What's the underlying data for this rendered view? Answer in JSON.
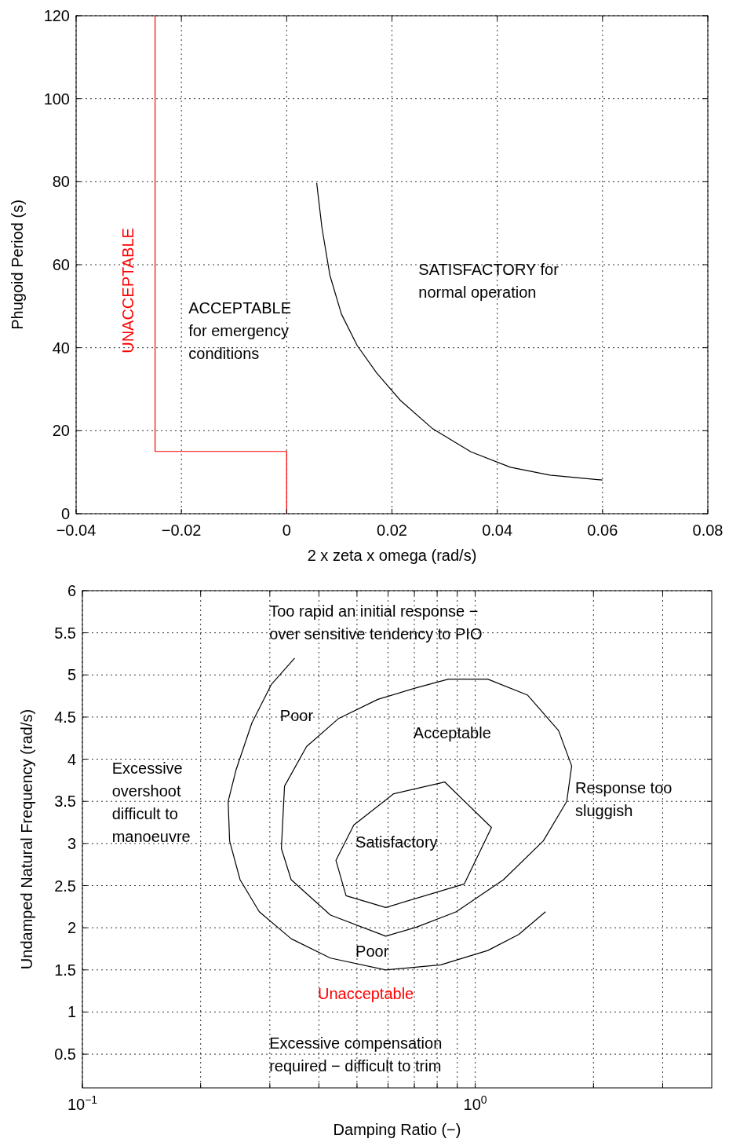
{
  "chart_data": [
    {
      "type": "line",
      "xlabel": "2 x zeta x omega (rad/s)",
      "ylabel": "Phugoid Period (s)",
      "xlim": [
        -0.04,
        0.08
      ],
      "ylim": [
        0,
        120
      ],
      "xticks": [
        {
          "value": -0.04,
          "label": "−0.04"
        },
        {
          "value": -0.02,
          "label": "−0.02"
        },
        0,
        0.02,
        0.04,
        0.06,
        0.08
      ],
      "yticks": [
        0,
        20,
        40,
        60,
        80,
        100,
        120
      ],
      "grid": true,
      "line_style": "solid",
      "marker": "none",
      "series": [
        {
          "color": "#ff0000",
          "x": [
            -0.025,
            -0.025,
            0,
            0
          ],
          "values": [
            120,
            15,
            15,
            0
          ]
        },
        {
          "color": "#000000",
          "x": [
            0.0057,
            0.0067,
            0.0082,
            0.0104,
            0.0134,
            0.0171,
            0.0216,
            0.0276,
            0.035,
            0.0425,
            0.05,
            0.06
          ],
          "values": [
            79.7,
            68.9,
            57.5,
            48.1,
            40.5,
            33.9,
            27.3,
            20.6,
            14.9,
            11.2,
            9.3,
            8.1
          ]
        }
      ],
      "annotations": [
        "UNACCEPTABLE",
        "ACCEPTABLE\nfor emergency\nconditions",
        "SATISFACTORY for\nnormal operation"
      ]
    },
    {
      "type": "line",
      "xlabel": "Damping Ratio (−)",
      "ylabel": "Undamped Natural Frequency (rad/s)",
      "log": "x",
      "xlim": [
        0.1,
        4
      ],
      "ylim": [
        0.1,
        6
      ],
      "xticks": [
        {
          "value": 0.1,
          "label": "10$^{−1}$"
        },
        {
          "value": 0.2,
          "label": null
        },
        {
          "value": 0.3,
          "label": null
        },
        {
          "value": 0.4,
          "label": null
        },
        {
          "value": 0.5,
          "label": null
        },
        {
          "value": 0.6,
          "label": null
        },
        {
          "value": 0.7,
          "label": null
        },
        {
          "value": 0.8,
          "label": null
        },
        {
          "value": 0.9,
          "label": null
        },
        {
          "value": 1,
          "label": "10$^{0}$"
        },
        {
          "value": 2,
          "label": null
        },
        {
          "value": 3,
          "label": null
        }
      ],
      "yticks": [
        0.5,
        1,
        1.5,
        2,
        2.5,
        3,
        3.5,
        4,
        4.5,
        5,
        5.5,
        6
      ],
      "grid": true,
      "line_style": "solid",
      "marker": "none",
      "series": [
        {
          "color": "#000000",
          "x": [
            0.347,
            0.303,
            0.27,
            0.246,
            0.235,
            0.237,
            0.252,
            0.282,
            0.34,
            0.428,
            0.592,
            0.817,
            1.076,
            1.29,
            1.51
          ],
          "values": [
            5.2,
            4.89,
            4.43,
            3.87,
            3.5,
            3.03,
            2.57,
            2.19,
            1.87,
            1.64,
            1.5,
            1.56,
            1.73,
            1.92,
            2.19
          ]
        }
      ],
      "annotations": [
        "Too rapid an initial response −\nover sensitive tendency to PIO",
        "Poor",
        "Acceptable",
        "Excessive\novershoot\ndifficult to\nmanoeuvre",
        "Response too\nsluggish",
        "Satisfactory",
        "Poor",
        "Unacceptable",
        "Excessive compensation\nrequired − difficult to trim"
      ]
    }
  ]
}
